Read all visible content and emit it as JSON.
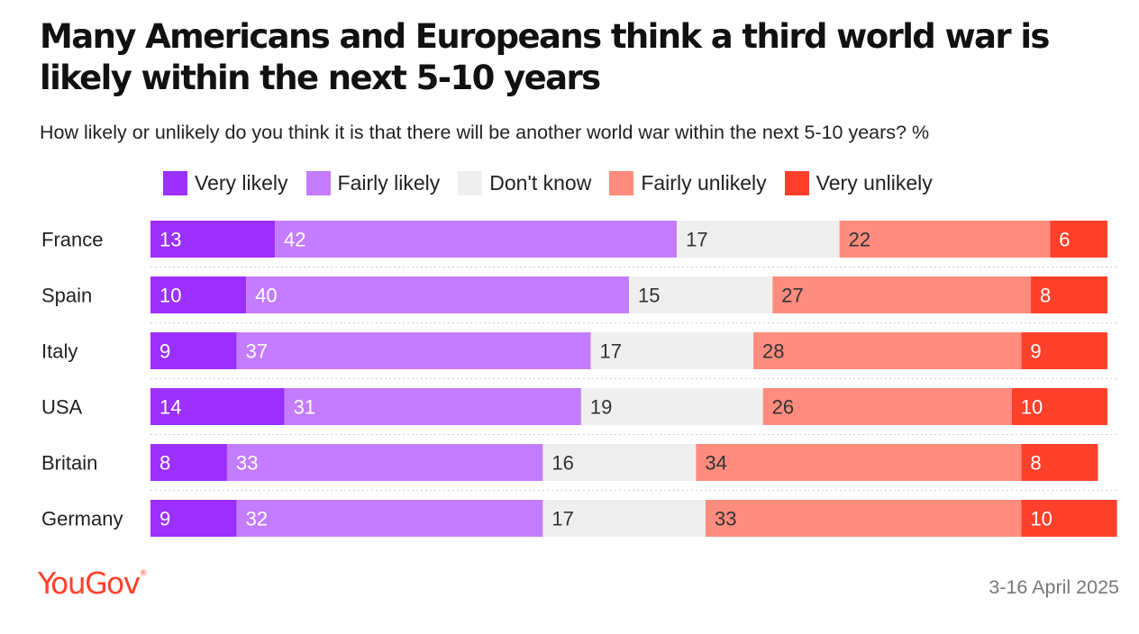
{
  "title": "Many Americans and Europeans think a third world war is likely within the next 5-10 years",
  "subtitle": "How likely or unlikely do you think it is that there will be another world war within the next 5-10 years? %",
  "legend": [
    {
      "label": "Very likely",
      "color": "#9b30ff"
    },
    {
      "label": "Fairly likely",
      "color": "#c47cff"
    },
    {
      "label": "Don't know",
      "color": "#efefef"
    },
    {
      "label": "Fairly unlikely",
      "color": "#ff8c7e"
    },
    {
      "label": "Very unlikely",
      "color": "#ff412c"
    }
  ],
  "footer": {
    "logo": "YouGov",
    "logo_mark": "®",
    "date": "3-16 April 2025"
  },
  "chart_data": {
    "type": "bar",
    "orientation": "horizontal",
    "stacked": true,
    "categories": [
      "France",
      "Spain",
      "Italy",
      "USA",
      "Britain",
      "Germany"
    ],
    "series": [
      {
        "name": "Very likely",
        "color": "#9b30ff",
        "label_color": "#ffffff",
        "values": [
          13,
          10,
          9,
          14,
          8,
          9
        ]
      },
      {
        "name": "Fairly likely",
        "color": "#c47cff",
        "label_color": "#ffffff",
        "values": [
          42,
          40,
          37,
          31,
          33,
          32
        ]
      },
      {
        "name": "Don't know",
        "color": "#efefef",
        "label_color": "#333333",
        "values": [
          17,
          15,
          17,
          19,
          16,
          17
        ]
      },
      {
        "name": "Fairly unlikely",
        "color": "#ff8c7e",
        "label_color": "#333333",
        "values": [
          22,
          27,
          28,
          26,
          34,
          33
        ]
      },
      {
        "name": "Very unlikely",
        "color": "#ff412c",
        "label_color": "#ffffff",
        "values": [
          6,
          8,
          9,
          10,
          8,
          10
        ]
      }
    ],
    "xlim": [
      0,
      100
    ],
    "legend_position": "top",
    "grid": false
  }
}
